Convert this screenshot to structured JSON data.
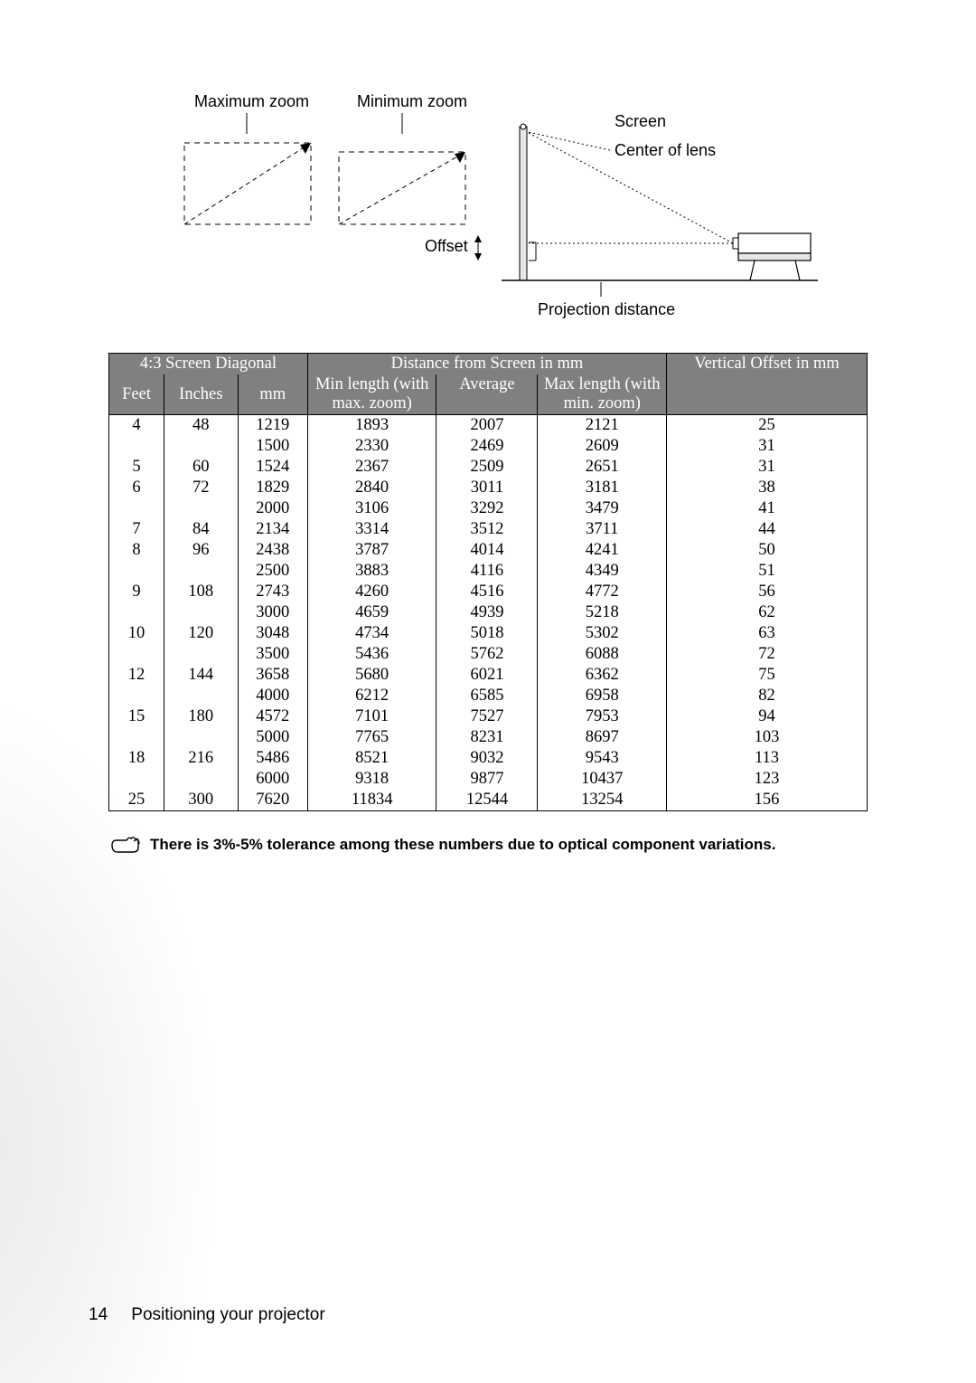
{
  "diagram": {
    "labels": {
      "max_zoom": "Maximum zoom",
      "min_zoom": "Minimum zoom",
      "screen": "Screen",
      "center_of_lens": "Center of lens",
      "offset": "Offset",
      "projection_distance": "Projection distance"
    },
    "label_fontsize": 18,
    "stroke_color": "#000000",
    "screen_fill": "#e6e6e6"
  },
  "table": {
    "header_bg": "#808080",
    "header_fg": "#ffffff",
    "border_color": "#000000",
    "cell_fontsize": 18.5,
    "header_row1": [
      "4:3 Screen Diagonal",
      "Distance from Screen in mm",
      "Vertical Offset in mm"
    ],
    "header_row2": [
      "Feet",
      "Inches",
      "mm",
      "Min length (with max. zoom)",
      "Average",
      "Max length (with min. zoom)",
      ""
    ],
    "rows": [
      [
        "4",
        "48",
        "1219",
        "1893",
        "2007",
        "2121",
        "25"
      ],
      [
        "",
        "",
        "1500",
        "2330",
        "2469",
        "2609",
        "31"
      ],
      [
        "5",
        "60",
        "1524",
        "2367",
        "2509",
        "2651",
        "31"
      ],
      [
        "6",
        "72",
        "1829",
        "2840",
        "3011",
        "3181",
        "38"
      ],
      [
        "",
        "",
        "2000",
        "3106",
        "3292",
        "3479",
        "41"
      ],
      [
        "7",
        "84",
        "2134",
        "3314",
        "3512",
        "3711",
        "44"
      ],
      [
        "8",
        "96",
        "2438",
        "3787",
        "4014",
        "4241",
        "50"
      ],
      [
        "",
        "",
        "2500",
        "3883",
        "4116",
        "4349",
        "51"
      ],
      [
        "9",
        "108",
        "2743",
        "4260",
        "4516",
        "4772",
        "56"
      ],
      [
        "",
        "",
        "3000",
        "4659",
        "4939",
        "5218",
        "62"
      ],
      [
        "10",
        "120",
        "3048",
        "4734",
        "5018",
        "5302",
        "63"
      ],
      [
        "",
        "",
        "3500",
        "5436",
        "5762",
        "6088",
        "72"
      ],
      [
        "12",
        "144",
        "3658",
        "5680",
        "6021",
        "6362",
        "75"
      ],
      [
        "",
        "",
        "4000",
        "6212",
        "6585",
        "6958",
        "82"
      ],
      [
        "15",
        "180",
        "4572",
        "7101",
        "7527",
        "7953",
        "94"
      ],
      [
        "",
        "",
        "5000",
        "7765",
        "8231",
        "8697",
        "103"
      ],
      [
        "18",
        "216",
        "5486",
        "8521",
        "9032",
        "9543",
        "113"
      ],
      [
        "",
        "",
        "6000",
        "9318",
        "9877",
        "10437",
        "123"
      ],
      [
        "25",
        "300",
        "7620",
        "11834",
        "12544",
        "13254",
        "156"
      ]
    ]
  },
  "note": {
    "text": "There is 3%-5% tolerance among these numbers due to optical component variations.",
    "fontsize": 17,
    "weight": "bold"
  },
  "footer": {
    "page_number": "14",
    "section": "Positioning your projector",
    "fontsize": 19
  }
}
